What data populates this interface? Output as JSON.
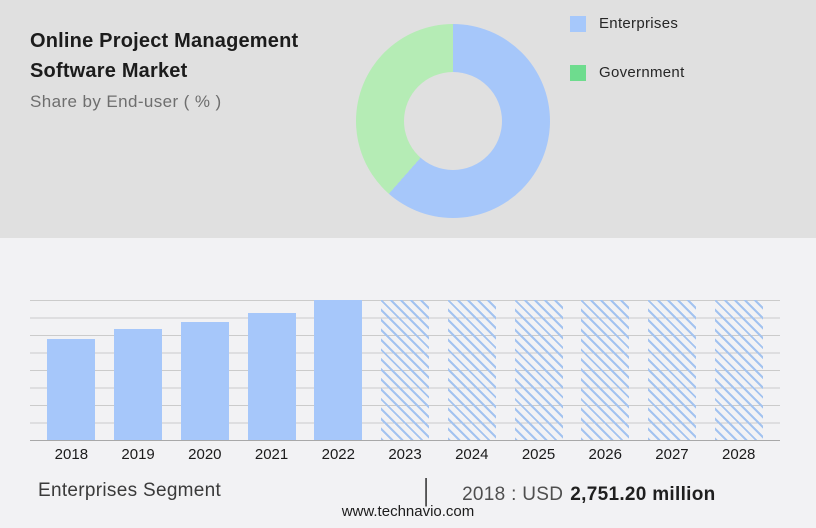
{
  "header": {
    "title_line1": "Online Project Management",
    "title_line2": "Software Market",
    "subtitle": "Share by End-user ( % )"
  },
  "legend": {
    "items": [
      {
        "label": "Enterprises",
        "color": "#a6c8fb"
      },
      {
        "label": "Government",
        "color": "#6edc8e"
      }
    ]
  },
  "footer": {
    "segment_label": "Enterprises Segment",
    "divider": "|",
    "value_prefix": "2018 : USD",
    "value_bold": "2,751.20 million",
    "website": "www.technavio.com"
  },
  "colors": {
    "top_background": "#e0e0e0",
    "bottom_background": "#f2f2f4",
    "bar_blue": "#a6c7fa",
    "donut_blue": "#a6c7fa",
    "donut_green": "#b5ecb5",
    "legend_green": "#6edc8e",
    "gridline": "#cbcbcb",
    "baseline": "#a8a8a8",
    "hatch_line": "#a3c3f0"
  },
  "chart_data": [
    {
      "type": "pie",
      "subtype": "donut",
      "title": "Share by End-user ( % )",
      "labels": [
        "Enterprises",
        "Government"
      ],
      "values": [
        61.5,
        38.5
      ],
      "values_note": "percent, estimated from slice angles; no data labels shown",
      "colors": [
        "#a6c7fa",
        "#b5ecb5"
      ],
      "legend_position": "right",
      "start_angle_deg": 0,
      "direction": "clockwise"
    },
    {
      "type": "bar",
      "title": "Enterprises Segment market size by year",
      "categories": [
        "2018",
        "2019",
        "2020",
        "2021",
        "2022",
        "2023",
        "2024",
        "2025",
        "2026",
        "2027",
        "2028"
      ],
      "bar_height_pct_of_max": [
        72,
        79,
        84,
        91,
        100,
        100,
        100,
        100,
        100,
        100,
        100
      ],
      "forecast_hatched": [
        false,
        false,
        false,
        false,
        false,
        true,
        true,
        true,
        true,
        true,
        true
      ],
      "known_point": {
        "year": "2018",
        "value": "USD 2,751.20 million"
      },
      "bar_color": "#a6c7fa",
      "hatch_color": "#a3c3f0",
      "xlabel": "",
      "ylabel": "",
      "y_axis_labels": "none",
      "grid": "horizontal"
    }
  ]
}
